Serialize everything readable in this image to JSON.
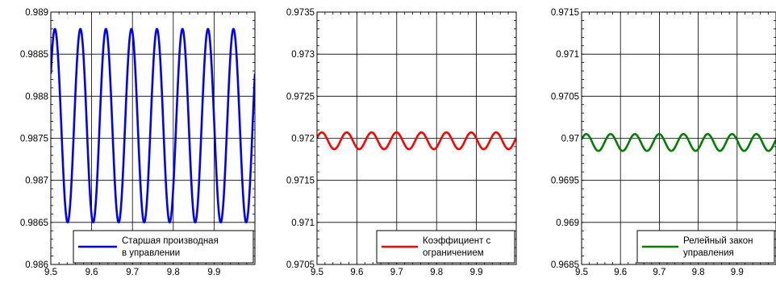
{
  "chart_data": [
    {
      "type": "line",
      "title": "",
      "xlabel": "",
      "ylabel": "",
      "xlim": [
        9.5,
        10.0
      ],
      "ylim": [
        0.986,
        0.989
      ],
      "x_ticks": [
        "9.5",
        "9.6",
        "9.7",
        "9.8",
        "9.9"
      ],
      "y_ticks": [
        "0.986",
        "0.9865",
        "0.987",
        "0.9875",
        "0.988",
        "0.9885",
        "0.989"
      ],
      "grid": true,
      "legend_position": "bottom-right",
      "series": [
        {
          "legend_lines": [
            "Старшая производная",
            "в управлении"
          ],
          "color": "#0000ff",
          "mean": 0.98765,
          "amplitude": 0.00115,
          "period": 0.0625,
          "peak_x": 9.51,
          "x_start": 9.5,
          "x_end": 10.0
        }
      ]
    },
    {
      "type": "line",
      "title": "",
      "xlabel": "",
      "ylabel": "",
      "xlim": [
        9.5,
        10.0
      ],
      "ylim": [
        0.9705,
        0.9735
      ],
      "x_ticks": [
        "9.5",
        "9.6",
        "9.7",
        "9.8",
        "9.9"
      ],
      "y_ticks": [
        "0.9705",
        "0.971",
        "0.9715",
        "0.972",
        "0.9725",
        "0.973",
        "0.9735"
      ],
      "grid": true,
      "legend_position": "bottom-right",
      "series": [
        {
          "legend_lines": [
            "Коэффициент с",
            "ограничением"
          ],
          "color": "#ff0000",
          "mean": 0.97197,
          "amplitude": 0.0001,
          "period": 0.0625,
          "peak_x": 9.512,
          "x_start": 9.5,
          "x_end": 10.0
        }
      ]
    },
    {
      "type": "line",
      "title": "",
      "xlabel": "",
      "ylabel": "",
      "xlim": [
        9.5,
        10.0
      ],
      "ylim": [
        0.9685,
        0.9715
      ],
      "x_ticks": [
        "9.5",
        "9.6",
        "9.7",
        "9.8",
        "9.9"
      ],
      "y_ticks": [
        "0.9685",
        "0.969",
        "0.9695",
        "0.97",
        "0.9705",
        "0.971",
        "0.9715"
      ],
      "grid": true,
      "legend_position": "bottom-right",
      "series": [
        {
          "legend_lines": [
            "Релейный закон",
            "управления"
          ],
          "color": "#008000",
          "mean": 0.96995,
          "amplitude": 0.0001,
          "period": 0.0625,
          "peak_x": 9.512,
          "x_start": 9.5,
          "x_end": 10.0
        }
      ]
    }
  ]
}
